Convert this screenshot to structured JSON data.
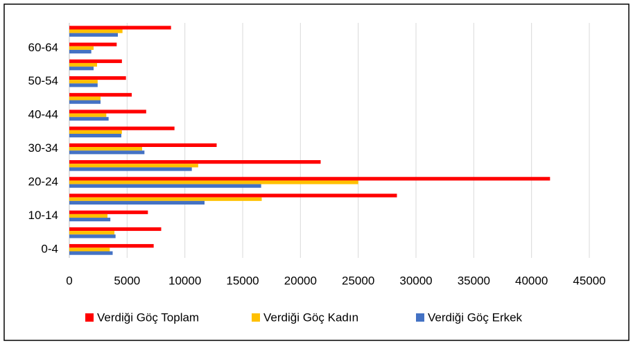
{
  "chart_data": {
    "type": "hbar",
    "categories": [
      "0-4",
      null,
      "10-14",
      null,
      "20-24",
      null,
      "30-34",
      null,
      "40-44",
      null,
      "50-54",
      null,
      "60-64",
      null
    ],
    "series": [
      {
        "name": "Verdiği Göç Toplam",
        "color": "#ff0000",
        "values": [
          7300,
          7950,
          6800,
          28350,
          41600,
          21750,
          12750,
          9100,
          6650,
          5400,
          4900,
          4550,
          4100,
          8800
        ]
      },
      {
        "name": "Verdiği Göç Kadın",
        "color": "#ffc000",
        "values": [
          3500,
          3900,
          3300,
          16650,
          25000,
          11150,
          6300,
          4550,
          3200,
          2700,
          2450,
          2400,
          2100,
          4600
        ]
      },
      {
        "name": "Verdiği Göç Erkek",
        "color": "#4472c4",
        "values": [
          3750,
          4000,
          3550,
          11700,
          16600,
          10600,
          6500,
          4500,
          3400,
          2700,
          2450,
          2100,
          1900,
          4200
        ]
      }
    ],
    "xlim": [
      0,
      45000
    ],
    "xticks": [
      0,
      5000,
      10000,
      15000,
      20000,
      25000,
      30000,
      35000,
      40000,
      45000
    ],
    "grid": true,
    "legend": "bottom"
  }
}
